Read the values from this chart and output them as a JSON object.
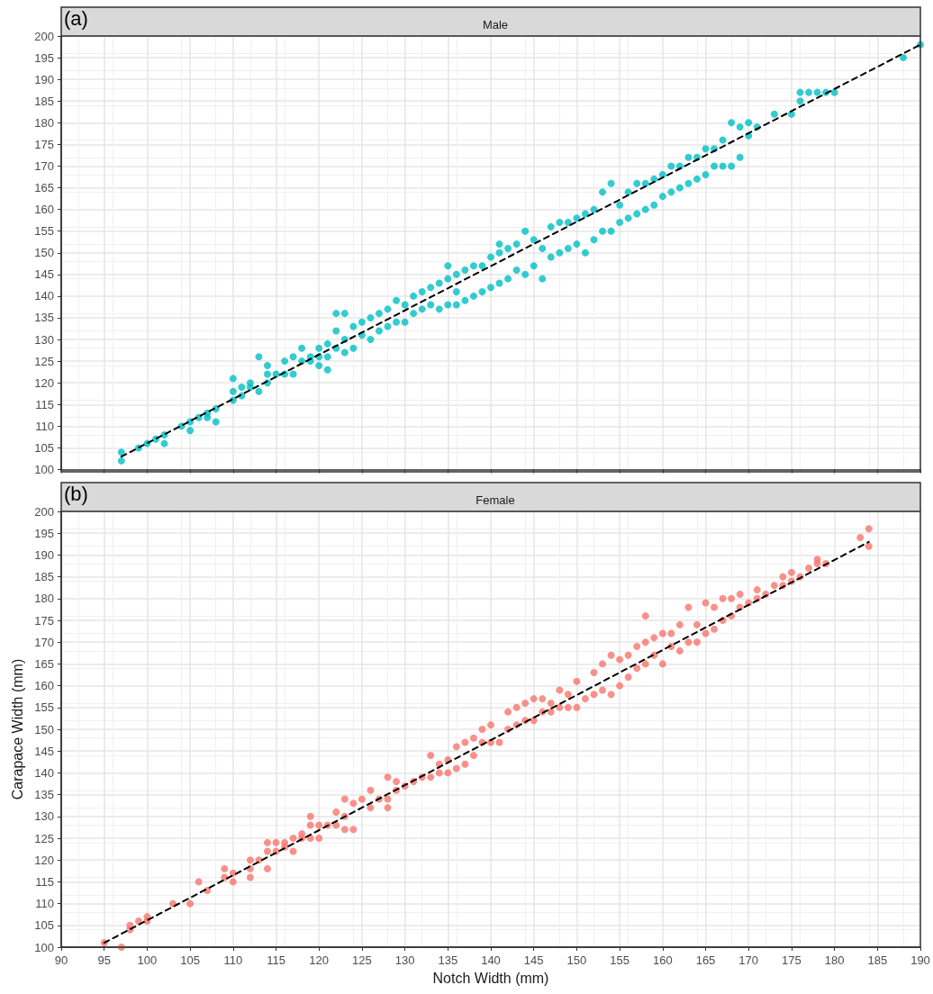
{
  "chart_data": [
    {
      "type": "scatter",
      "title": "Male",
      "annotations": [
        "(a)"
      ],
      "xlim": [
        90,
        190
      ],
      "xticks": [
        90,
        95,
        100,
        105,
        110,
        115,
        120,
        125,
        130,
        135,
        140,
        145,
        150,
        155,
        160,
        165,
        170,
        175,
        180,
        185,
        190
      ],
      "ylim": [
        100,
        200
      ],
      "yticks": [
        100,
        105,
        110,
        115,
        120,
        125,
        130,
        135,
        140,
        145,
        150,
        155,
        160,
        165,
        170,
        175,
        180,
        185,
        190,
        195,
        200
      ],
      "tick_labels": "y",
      "grid": true,
      "marker": "circle",
      "series": [
        {
          "color": "#00bfc4",
          "x": [
            97,
            97,
            99,
            100,
            101,
            102,
            102,
            104,
            105,
            105,
            106,
            107,
            107,
            108,
            108,
            110,
            110,
            110,
            111,
            111,
            112,
            112,
            113,
            113,
            114,
            114,
            114,
            115,
            116,
            116,
            117,
            117,
            118,
            118,
            119,
            119,
            120,
            120,
            120,
            121,
            121,
            121,
            122,
            122,
            122,
            123,
            123,
            123,
            124,
            124,
            125,
            125,
            126,
            126,
            127,
            127,
            128,
            128,
            129,
            129,
            130,
            130,
            131,
            131,
            132,
            132,
            133,
            133,
            134,
            134,
            135,
            135,
            135,
            136,
            136,
            136,
            137,
            137,
            138,
            138,
            139,
            139,
            140,
            140,
            141,
            141,
            141,
            142,
            142,
            143,
            143,
            144,
            144,
            145,
            145,
            146,
            146,
            147,
            147,
            148,
            148,
            149,
            149,
            150,
            150,
            151,
            151,
            152,
            152,
            153,
            153,
            154,
            154,
            155,
            155,
            156,
            156,
            157,
            157,
            158,
            158,
            159,
            159,
            160,
            160,
            161,
            161,
            162,
            162,
            163,
            163,
            164,
            164,
            165,
            165,
            166,
            166,
            167,
            167,
            168,
            168,
            169,
            169,
            170,
            170,
            171,
            173,
            175,
            176,
            176,
            177,
            178,
            179,
            180,
            188,
            190
          ],
          "values": [
            102,
            104,
            105,
            106,
            107,
            106,
            108,
            110,
            109,
            111,
            112,
            112,
            113,
            111,
            114,
            116,
            118,
            121,
            117,
            119,
            119,
            120,
            118,
            126,
            120,
            122,
            124,
            122,
            122,
            125,
            122,
            126,
            125,
            128,
            125,
            126,
            124,
            126,
            128,
            123,
            126,
            129,
            128,
            132,
            136,
            127,
            130,
            136,
            128,
            133,
            131,
            134,
            130,
            135,
            132,
            136,
            133,
            137,
            134,
            139,
            134,
            138,
            136,
            140,
            137,
            141,
            138,
            142,
            137,
            143,
            138,
            144,
            147,
            138,
            141,
            145,
            139,
            146,
            140,
            147,
            141,
            147,
            142,
            149,
            143,
            150,
            152,
            144,
            151,
            146,
            152,
            145,
            155,
            147,
            153,
            144,
            151,
            149,
            156,
            150,
            157,
            151,
            157,
            152,
            158,
            150,
            159,
            153,
            160,
            155,
            164,
            155,
            166,
            157,
            161,
            158,
            164,
            159,
            166,
            160,
            166,
            161,
            167,
            163,
            168,
            164,
            170,
            165,
            170,
            166,
            172,
            167,
            172,
            168,
            174,
            170,
            174,
            170,
            176,
            170,
            180,
            172,
            179,
            177,
            180,
            179,
            182,
            182,
            185,
            187,
            187,
            187,
            187,
            187,
            195,
            198
          ]
        },
        {
          "type": "line",
          "color": "#000000",
          "line_style": "dashed",
          "marker": "none",
          "x": [
            97,
            190
          ],
          "values": [
            103,
            198
          ]
        }
      ]
    },
    {
      "type": "scatter",
      "title": "Female",
      "annotations": [
        "(b)"
      ],
      "xlabel": "Notch Width (mm)",
      "ylabel": "Carapace Width (mm)",
      "xlim": [
        90,
        190
      ],
      "xticks": [
        90,
        95,
        100,
        105,
        110,
        115,
        120,
        125,
        130,
        135,
        140,
        145,
        150,
        155,
        160,
        165,
        170,
        175,
        180,
        185,
        190
      ],
      "ylim": [
        100,
        200
      ],
      "yticks": [
        100,
        105,
        110,
        115,
        120,
        125,
        130,
        135,
        140,
        145,
        150,
        155,
        160,
        165,
        170,
        175,
        180,
        185,
        190,
        195,
        200
      ],
      "grid": true,
      "marker": "circle",
      "series": [
        {
          "color": "#f8766d",
          "x": [
            95,
            97,
            98,
            98,
            99,
            100,
            100,
            103,
            105,
            106,
            107,
            109,
            109,
            110,
            110,
            112,
            112,
            112,
            113,
            114,
            114,
            114,
            115,
            115,
            116,
            116,
            117,
            117,
            118,
            118,
            119,
            119,
            119,
            120,
            120,
            121,
            122,
            122,
            123,
            123,
            123,
            124,
            124,
            125,
            126,
            126,
            127,
            128,
            128,
            128,
            129,
            129,
            130,
            131,
            132,
            133,
            133,
            134,
            134,
            135,
            135,
            136,
            136,
            137,
            137,
            138,
            138,
            139,
            139,
            140,
            140,
            141,
            142,
            142,
            143,
            143,
            144,
            144,
            145,
            145,
            146,
            146,
            147,
            147,
            148,
            148,
            149,
            149,
            150,
            150,
            151,
            152,
            152,
            153,
            153,
            154,
            154,
            155,
            155,
            156,
            156,
            157,
            157,
            158,
            158,
            158,
            159,
            159,
            160,
            160,
            161,
            161,
            162,
            162,
            163,
            163,
            164,
            164,
            165,
            165,
            166,
            166,
            167,
            167,
            168,
            168,
            169,
            169,
            170,
            171,
            171,
            172,
            173,
            174,
            174,
            175,
            175,
            176,
            177,
            178,
            178,
            179,
            183,
            184,
            184
          ],
          "values": [
            101,
            100,
            104,
            105,
            106,
            106,
            107,
            110,
            110,
            115,
            113,
            116,
            118,
            115,
            117,
            116,
            118,
            120,
            120,
            118,
            122,
            124,
            122,
            124,
            123,
            124,
            122,
            125,
            125,
            126,
            125,
            128,
            130,
            125,
            128,
            128,
            128,
            131,
            127,
            130,
            134,
            127,
            133,
            134,
            132,
            136,
            134,
            132,
            134,
            139,
            136,
            138,
            137,
            138,
            139,
            139,
            144,
            140,
            142,
            140,
            143,
            141,
            146,
            142,
            147,
            144,
            148,
            147,
            150,
            147,
            151,
            147,
            150,
            154,
            151,
            155,
            152,
            156,
            152,
            157,
            154,
            157,
            154,
            156,
            155,
            159,
            155,
            158,
            155,
            161,
            157,
            158,
            163,
            159,
            165,
            158,
            167,
            160,
            166,
            162,
            167,
            164,
            169,
            165,
            170,
            176,
            167,
            171,
            165,
            172,
            169,
            172,
            168,
            174,
            170,
            178,
            170,
            174,
            172,
            179,
            173,
            178,
            175,
            180,
            176,
            180,
            178,
            181,
            179,
            180,
            182,
            181,
            183,
            183,
            185,
            184,
            186,
            185,
            187,
            188,
            189,
            188,
            194,
            192,
            196
          ]
        },
        {
          "type": "line",
          "color": "#000000",
          "line_style": "dashed",
          "marker": "none",
          "x": [
            95,
            184
          ],
          "values": [
            101,
            193
          ]
        }
      ]
    }
  ]
}
